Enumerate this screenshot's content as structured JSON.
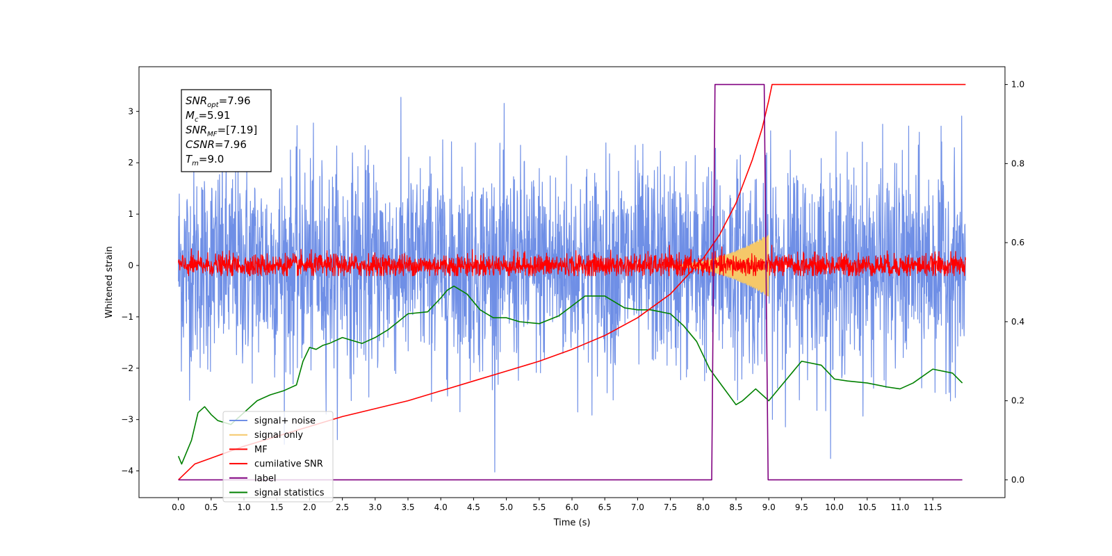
{
  "chart_data": {
    "type": "line",
    "xlabel": "Time (s)",
    "ylabel": "Whitened strain",
    "xlim": [
      -0.6,
      12.6
    ],
    "ylim": [
      -4.52,
      3.87
    ],
    "ylim_right": [
      -0.045,
      1.045
    ],
    "x_ticks": [
      "0.0",
      "0.5",
      "1.0",
      "1.5",
      "2.0",
      "2.5",
      "3.0",
      "3.5",
      "4.0",
      "4.5",
      "5.0",
      "5.5",
      "6.0",
      "6.5",
      "7.0",
      "7.5",
      "8.0",
      "8.5",
      "9.0",
      "9.5",
      "10.0",
      "10.5",
      "11.0",
      "11.5"
    ],
    "y_ticks_left": [
      "3",
      "2",
      "1",
      "0",
      "−1",
      "−2",
      "−3",
      "−4"
    ],
    "y_ticks_right": [
      "1.0",
      "0.8",
      "0.6",
      "0.4",
      "0.2",
      "0.0"
    ],
    "annotation": {
      "lines": [
        {
          "name": "SNR",
          "sub": "opt",
          "value": "=7.96"
        },
        {
          "name": "M",
          "sub": "c",
          "value": "=5.91"
        },
        {
          "name": "SNR",
          "sub": "MF",
          "value": "=[7.19]"
        },
        {
          "name": "CSNR",
          "sub": "",
          "value": "=7.96"
        },
        {
          "name": "T",
          "sub": "m",
          "value": "=9.0"
        }
      ]
    },
    "legend": {
      "position": "lower-left",
      "entries": [
        {
          "label": "signal+ noise",
          "color": "#6f8fe6"
        },
        {
          "label": "signal only",
          "color": "#f5c869"
        },
        {
          "label": "MF",
          "color": "#ff0000"
        },
        {
          "label": "cumilative SNR",
          "color": "#ff0000"
        },
        {
          "label": "label",
          "color": "#800080"
        },
        {
          "label": "signal statistics",
          "color": "#008000"
        }
      ]
    },
    "series": [
      {
        "name": "signal+ noise",
        "axis": "left",
        "color": "#6f8fe6",
        "kind": "noise",
        "duration": 12.0,
        "std": 1.0,
        "ymin": -4.15,
        "ymax": 3.42
      },
      {
        "name": "signal only",
        "axis": "left",
        "color": "#f5c869",
        "kind": "chirp",
        "start": 7.3,
        "end": 9.0,
        "peak_amplitude": 0.62
      },
      {
        "name": "MF",
        "axis": "left",
        "color": "#ff0000",
        "kind": "noise",
        "duration": 12.0,
        "std": 0.11,
        "ymin": -0.2,
        "ymax": 0.55
      },
      {
        "name": "cumilative SNR",
        "axis": "right",
        "color": "#ff0000",
        "x": [
          0.0,
          0.25,
          0.5,
          1.0,
          1.5,
          2.0,
          2.5,
          3.0,
          3.5,
          4.0,
          4.5,
          5.0,
          5.5,
          6.0,
          6.5,
          7.0,
          7.5,
          8.0,
          8.25,
          8.5,
          8.75,
          8.9,
          9.0,
          9.05,
          12.0
        ],
        "y": [
          0.0,
          0.04,
          0.055,
          0.085,
          0.11,
          0.135,
          0.16,
          0.18,
          0.2,
          0.225,
          0.25,
          0.275,
          0.3,
          0.33,
          0.365,
          0.41,
          0.47,
          0.56,
          0.62,
          0.7,
          0.81,
          0.89,
          0.96,
          1.0,
          1.0
        ]
      },
      {
        "name": "label",
        "axis": "right",
        "color": "#800080",
        "x": [
          0.0,
          8.13,
          8.18,
          8.93,
          8.99,
          11.95
        ],
        "y": [
          0.0,
          0.0,
          1.0,
          1.0,
          0.0,
          0.0
        ]
      },
      {
        "name": "signal statistics",
        "axis": "right",
        "color": "#008000",
        "x": [
          0.0,
          0.05,
          0.2,
          0.3,
          0.4,
          0.5,
          0.6,
          0.8,
          1.0,
          1.2,
          1.4,
          1.6,
          1.8,
          1.9,
          2.0,
          2.1,
          2.2,
          2.3,
          2.5,
          2.8,
          3.0,
          3.2,
          3.5,
          3.8,
          4.0,
          4.1,
          4.2,
          4.4,
          4.6,
          4.8,
          5.0,
          5.2,
          5.5,
          5.8,
          6.0,
          6.2,
          6.5,
          6.8,
          7.0,
          7.2,
          7.5,
          7.7,
          7.9,
          8.1,
          8.3,
          8.5,
          8.6,
          8.8,
          9.0,
          9.2,
          9.5,
          9.8,
          10.0,
          10.2,
          10.5,
          10.8,
          11.0,
          11.2,
          11.5,
          11.8,
          11.95
        ],
        "y": [
          0.06,
          0.04,
          0.1,
          0.17,
          0.185,
          0.165,
          0.15,
          0.14,
          0.17,
          0.2,
          0.215,
          0.225,
          0.24,
          0.3,
          0.335,
          0.33,
          0.34,
          0.345,
          0.36,
          0.345,
          0.36,
          0.38,
          0.42,
          0.425,
          0.46,
          0.48,
          0.49,
          0.47,
          0.43,
          0.41,
          0.41,
          0.4,
          0.395,
          0.415,
          0.44,
          0.465,
          0.465,
          0.435,
          0.43,
          0.43,
          0.42,
          0.39,
          0.35,
          0.28,
          0.235,
          0.19,
          0.2,
          0.23,
          0.2,
          0.24,
          0.3,
          0.29,
          0.255,
          0.25,
          0.245,
          0.235,
          0.23,
          0.245,
          0.28,
          0.27,
          0.245
        ]
      }
    ]
  }
}
